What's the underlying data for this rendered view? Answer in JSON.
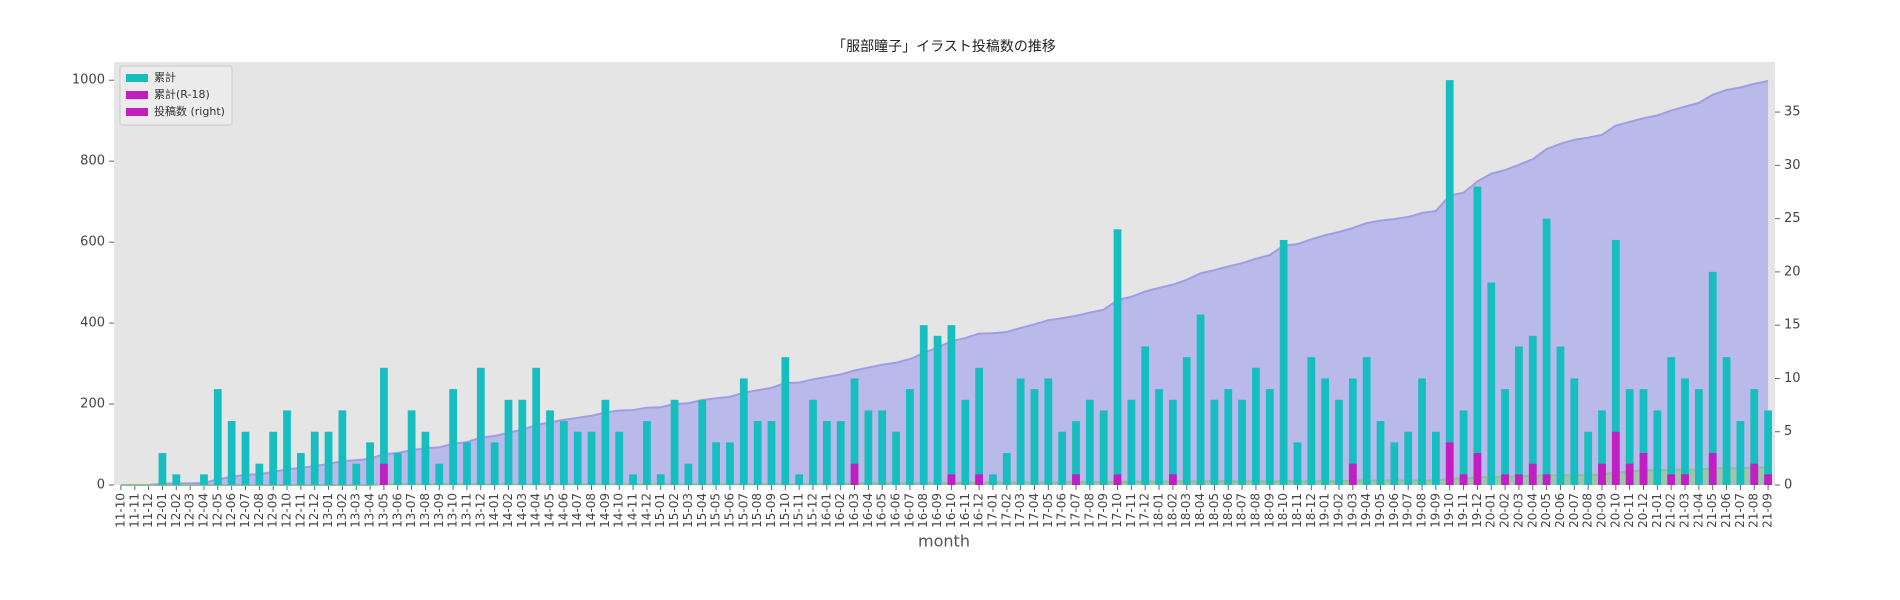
{
  "chart_data": {
    "type": "bar_area",
    "title": "「服部瞳子」イラスト投稿数の推移",
    "xlabel": "month",
    "categories": [
      "11-10",
      "11-11",
      "11-12",
      "12-01",
      "12-02",
      "12-03",
      "12-04",
      "12-05",
      "12-06",
      "12-07",
      "12-08",
      "12-09",
      "12-10",
      "12-11",
      "12-12",
      "13-01",
      "13-02",
      "13-03",
      "13-04",
      "13-05",
      "13-06",
      "13-07",
      "13-08",
      "13-09",
      "13-10",
      "13-11",
      "13-12",
      "14-01",
      "14-02",
      "14-03",
      "14-04",
      "14-05",
      "14-06",
      "14-07",
      "14-08",
      "14-09",
      "14-10",
      "14-11",
      "14-12",
      "15-01",
      "15-02",
      "15-03",
      "15-04",
      "15-05",
      "15-06",
      "15-07",
      "15-08",
      "15-09",
      "15-10",
      "15-11",
      "15-12",
      "16-01",
      "16-02",
      "16-03",
      "16-04",
      "16-05",
      "16-06",
      "16-07",
      "16-08",
      "16-09",
      "16-10",
      "16-11",
      "16-12",
      "17-01",
      "17-02",
      "17-03",
      "17-04",
      "17-05",
      "17-06",
      "17-07",
      "17-08",
      "17-09",
      "17-10",
      "17-11",
      "17-12",
      "18-01",
      "18-02",
      "18-03",
      "18-04",
      "18-05",
      "18-06",
      "18-07",
      "18-08",
      "18-09",
      "18-10",
      "18-11",
      "18-12",
      "19-01",
      "19-02",
      "19-03",
      "19-04",
      "19-05",
      "19-06",
      "19-07",
      "19-08",
      "19-09",
      "19-10",
      "19-11",
      "19-12",
      "20-01",
      "20-02",
      "20-03",
      "20-04",
      "20-05",
      "20-06",
      "20-07",
      "20-08",
      "20-09",
      "20-10",
      "20-11",
      "20-12",
      "21-01",
      "21-02",
      "21-03",
      "21-04",
      "21-05",
      "21-06",
      "21-07",
      "21-08",
      "21-09"
    ],
    "series": [
      {
        "kind": "area",
        "axis": "y",
        "color": "#b4b4ea",
        "line_color": "#a29ce2",
        "values": [
          0,
          0,
          0,
          3,
          4,
          4,
          5,
          14,
          20,
          25,
          27,
          32,
          39,
          42,
          47,
          52,
          59,
          61,
          65,
          76,
          79,
          86,
          91,
          93,
          102,
          106,
          117,
          121,
          129,
          137,
          148,
          155,
          161,
          166,
          171,
          179,
          184,
          185,
          191,
          192,
          200,
          202,
          210,
          214,
          218,
          228,
          234,
          240,
          252,
          253,
          261,
          267,
          273,
          283,
          290,
          297,
          302,
          311,
          326,
          340,
          355,
          363,
          374,
          375,
          378,
          388,
          397,
          407,
          412,
          418,
          426,
          433,
          457,
          465,
          478,
          487,
          495,
          507,
          523,
          531,
          540,
          548,
          559,
          568,
          591,
          595,
          607,
          617,
          625,
          635,
          647,
          653,
          657,
          662,
          672,
          677,
          715,
          722,
          750,
          769,
          778,
          791,
          805,
          830,
          843,
          853,
          858,
          865,
          888,
          897,
          906,
          913,
          925,
          935,
          944,
          964,
          976,
          982,
          991,
          998
        ]
      },
      {
        "kind": "area",
        "axis": "y",
        "color": "#9fc7a5",
        "line_color": "#8fbf98",
        "values": [
          0,
          0,
          0,
          0,
          0,
          0,
          0,
          0,
          0,
          0,
          0,
          0,
          0,
          0,
          0,
          0,
          0,
          0,
          0,
          2,
          2,
          2,
          2,
          2,
          2,
          2,
          2,
          2,
          2,
          2,
          2,
          2,
          2,
          2,
          2,
          2,
          2,
          2,
          2,
          2,
          2,
          2,
          2,
          2,
          2,
          2,
          2,
          2,
          2,
          2,
          2,
          2,
          2,
          4,
          4,
          4,
          4,
          4,
          4,
          4,
          5,
          5,
          6,
          6,
          6,
          6,
          6,
          6,
          6,
          7,
          7,
          7,
          8,
          8,
          8,
          8,
          9,
          9,
          9,
          9,
          9,
          9,
          9,
          9,
          9,
          9,
          9,
          9,
          9,
          11,
          11,
          11,
          11,
          11,
          11,
          11,
          15,
          16,
          19,
          19,
          20,
          21,
          23,
          24,
          24,
          24,
          24,
          26,
          31,
          33,
          36,
          36,
          37,
          38,
          38,
          41,
          41,
          41,
          43,
          44
        ]
      },
      {
        "kind": "bar",
        "axis": "y2",
        "color": "#17bebf",
        "values": [
          0,
          0,
          0,
          3,
          1,
          0,
          1,
          9,
          6,
          5,
          2,
          5,
          7,
          3,
          5,
          5,
          7,
          2,
          4,
          11,
          3,
          7,
          5,
          2,
          9,
          4,
          11,
          4,
          8,
          8,
          11,
          7,
          6,
          5,
          5,
          8,
          5,
          1,
          6,
          1,
          8,
          2,
          8,
          4,
          4,
          10,
          6,
          6,
          12,
          1,
          8,
          6,
          6,
          10,
          7,
          7,
          5,
          9,
          15,
          14,
          15,
          8,
          11,
          1,
          3,
          10,
          9,
          10,
          5,
          6,
          8,
          7,
          24,
          8,
          13,
          9,
          8,
          12,
          16,
          8,
          9,
          8,
          11,
          9,
          23,
          4,
          12,
          10,
          8,
          10,
          12,
          6,
          4,
          5,
          10,
          5,
          38,
          7,
          28,
          19,
          9,
          13,
          14,
          25,
          13,
          10,
          5,
          7,
          23,
          9,
          9,
          7,
          12,
          10,
          9,
          20,
          12,
          6,
          9,
          7
        ]
      },
      {
        "kind": "bar",
        "axis": "y2",
        "color": "#c21ec2",
        "values": [
          0,
          0,
          0,
          0,
          0,
          0,
          0,
          0,
          0,
          0,
          0,
          0,
          0,
          0,
          0,
          0,
          0,
          0,
          0,
          2,
          0,
          0,
          0,
          0,
          0,
          0,
          0,
          0,
          0,
          0,
          0,
          0,
          0,
          0,
          0,
          0,
          0,
          0,
          0,
          0,
          0,
          0,
          0,
          0,
          0,
          0,
          0,
          0,
          0,
          0,
          0,
          0,
          0,
          2,
          0,
          0,
          0,
          0,
          0,
          0,
          1,
          0,
          1,
          0,
          0,
          0,
          0,
          0,
          0,
          1,
          0,
          0,
          1,
          0,
          0,
          0,
          1,
          0,
          0,
          0,
          0,
          0,
          0,
          0,
          0,
          0,
          0,
          0,
          0,
          2,
          0,
          0,
          0,
          0,
          0,
          0,
          4,
          1,
          3,
          0,
          1,
          1,
          2,
          1,
          0,
          0,
          0,
          2,
          5,
          2,
          3,
          0,
          1,
          1,
          0,
          3,
          0,
          0,
          2,
          1
        ]
      }
    ],
    "ylim": [
      0,
      1045
    ],
    "yticks": [
      0,
      200,
      400,
      600,
      800,
      1000
    ],
    "y2lim": [
      0,
      39.7
    ],
    "y2ticks": [
      0,
      5,
      10,
      15,
      20,
      25,
      30,
      35
    ],
    "grid": false,
    "legend": {
      "position": "upper left",
      "entries": [
        {
          "label": "累計",
          "color": "#17bebf"
        },
        {
          "label": "累計(R-18)",
          "color": "#c21ec2"
        },
        {
          "label": "投稿数 (right)",
          "color": "#c21ec2"
        }
      ]
    }
  }
}
